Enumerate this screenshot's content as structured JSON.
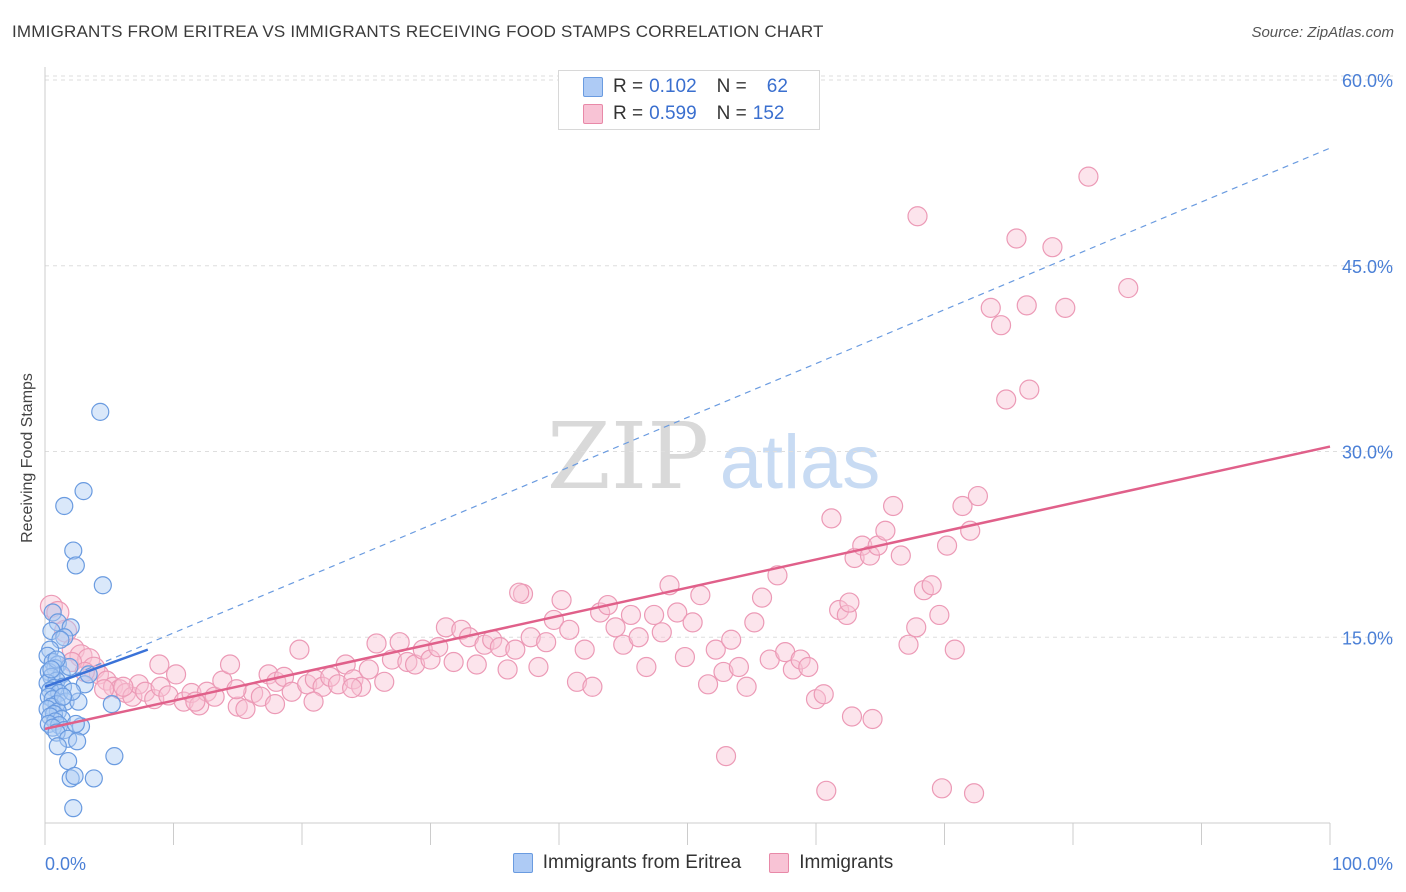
{
  "header": {
    "title": "IMMIGRANTS FROM ERITREA VS IMMIGRANTS RECEIVING FOOD STAMPS CORRELATION CHART",
    "source": "Source: ZipAtlas.com"
  },
  "watermark": {
    "part1": "ZIP",
    "part2": "atlas"
  },
  "legend": {
    "rows": [
      {
        "r_label": "R =",
        "r_value": "0.102",
        "n_label": "N =",
        "n_value": "62",
        "color": "#aecbf5",
        "border": "#6a9be0"
      },
      {
        "r_label": "R =",
        "r_value": "0.599",
        "n_label": "N =",
        "n_value": "152",
        "color": "#f8c3d5",
        "border": "#e889a8"
      }
    ]
  },
  "bottom_legend": {
    "series1": "Immigrants from Eritrea",
    "series2": "Immigrants"
  },
  "chart_data": {
    "type": "scatter",
    "title": "IMMIGRANTS FROM ERITREA VS IMMIGRANTS RECEIVING FOOD STAMPS CORRELATION CHART",
    "xlabel": "",
    "ylabel": "Receiving Food Stamps",
    "xlim": [
      0,
      100
    ],
    "ylim": [
      0,
      60
    ],
    "x_tick_labels": [
      "0.0%",
      "100.0%"
    ],
    "y_ticks": [
      15,
      30,
      45,
      60
    ],
    "y_tick_labels": [
      "15.0%",
      "30.0%",
      "45.0%",
      "60.0%"
    ],
    "grid": true,
    "legend_placement": "top-center",
    "colors": {
      "eritrea": "#6a9be0",
      "immigrants": "#e889a8",
      "eritrea_line": "#3a72d8",
      "immigrants_line": "#e0608a"
    },
    "series": [
      {
        "name": "Immigrants from Eritrea",
        "R": 0.102,
        "N": 62,
        "trend": {
          "x": [
            0,
            8
          ],
          "y": [
            11.0,
            14.0
          ],
          "extended_to": [
            100,
            54.5
          ]
        },
        "points": [
          [
            4.3,
            33.2
          ],
          [
            3.0,
            26.8
          ],
          [
            1.5,
            25.6
          ],
          [
            2.2,
            22.0
          ],
          [
            2.4,
            20.8
          ],
          [
            4.5,
            19.2
          ],
          [
            0.6,
            17.0
          ],
          [
            1.0,
            16.2
          ],
          [
            2.0,
            15.8
          ],
          [
            0.5,
            15.5
          ],
          [
            1.5,
            15.0
          ],
          [
            1.2,
            14.8
          ],
          [
            0.4,
            14.0
          ],
          [
            0.2,
            13.5
          ],
          [
            0.6,
            13.0
          ],
          [
            1.0,
            12.8
          ],
          [
            0.8,
            12.5
          ],
          [
            0.3,
            12.2
          ],
          [
            1.3,
            12.0
          ],
          [
            0.5,
            11.8
          ],
          [
            0.9,
            11.5
          ],
          [
            0.2,
            11.3
          ],
          [
            1.4,
            11.0
          ],
          [
            0.7,
            10.9
          ],
          [
            0.4,
            10.7
          ],
          [
            1.1,
            10.5
          ],
          [
            0.3,
            10.2
          ],
          [
            0.6,
            10.0
          ],
          [
            1.6,
            9.8
          ],
          [
            0.9,
            9.6
          ],
          [
            0.5,
            9.4
          ],
          [
            0.2,
            9.2
          ],
          [
            1.0,
            9.0
          ],
          [
            0.7,
            8.8
          ],
          [
            0.4,
            8.6
          ],
          [
            1.3,
            8.4
          ],
          [
            0.8,
            8.2
          ],
          [
            0.3,
            8.0
          ],
          [
            1.1,
            7.9
          ],
          [
            0.6,
            7.7
          ],
          [
            1.5,
            7.5
          ],
          [
            0.9,
            7.3
          ],
          [
            2.8,
            7.8
          ],
          [
            1.8,
            6.8
          ],
          [
            2.5,
            6.6
          ],
          [
            1.0,
            6.2
          ],
          [
            5.4,
            5.4
          ],
          [
            1.8,
            5.0
          ],
          [
            2.0,
            3.6
          ],
          [
            2.3,
            3.8
          ],
          [
            3.8,
            3.6
          ],
          [
            2.2,
            1.2
          ],
          [
            3.1,
            11.2
          ],
          [
            3.4,
            12.0
          ],
          [
            5.2,
            9.6
          ],
          [
            2.6,
            9.8
          ],
          [
            1.9,
            12.6
          ],
          [
            2.1,
            10.6
          ],
          [
            0.9,
            13.2
          ],
          [
            1.4,
            10.2
          ],
          [
            2.4,
            8.0
          ],
          [
            0.5,
            12.4
          ]
        ]
      },
      {
        "name": "Immigrants",
        "R": 0.599,
        "N": 152,
        "trend": {
          "x": [
            0,
            100
          ],
          "y": [
            7.6,
            30.4
          ]
        },
        "points": [
          [
            0.5,
            17.5
          ],
          [
            1.0,
            17.0
          ],
          [
            1.6,
            15.5
          ],
          [
            2.2,
            14.0
          ],
          [
            2.8,
            13.5
          ],
          [
            3.4,
            13.2
          ],
          [
            3.8,
            12.5
          ],
          [
            4.2,
            12.0
          ],
          [
            4.8,
            11.5
          ],
          [
            5.3,
            11.0
          ],
          [
            5.8,
            10.8
          ],
          [
            6.3,
            10.5
          ],
          [
            6.8,
            10.2
          ],
          [
            7.3,
            11.2
          ],
          [
            7.8,
            10.6
          ],
          [
            8.5,
            10.0
          ],
          [
            9.0,
            11.0
          ],
          [
            9.6,
            10.3
          ],
          [
            10.2,
            12.0
          ],
          [
            10.8,
            9.8
          ],
          [
            11.4,
            10.5
          ],
          [
            12.0,
            9.5
          ],
          [
            12.6,
            10.6
          ],
          [
            13.2,
            10.2
          ],
          [
            13.8,
            11.5
          ],
          [
            14.4,
            12.8
          ],
          [
            15.0,
            9.4
          ],
          [
            15.6,
            9.2
          ],
          [
            16.2,
            10.5
          ],
          [
            16.8,
            10.2
          ],
          [
            17.4,
            12.0
          ],
          [
            18.0,
            11.4
          ],
          [
            18.6,
            11.8
          ],
          [
            19.2,
            10.6
          ],
          [
            19.8,
            14.0
          ],
          [
            20.4,
            11.2
          ],
          [
            21.0,
            11.6
          ],
          [
            21.6,
            11.0
          ],
          [
            22.2,
            11.8
          ],
          [
            22.8,
            11.2
          ],
          [
            23.4,
            12.8
          ],
          [
            24.0,
            11.6
          ],
          [
            24.6,
            11.0
          ],
          [
            25.2,
            12.4
          ],
          [
            25.8,
            14.5
          ],
          [
            26.4,
            11.4
          ],
          [
            27.0,
            13.2
          ],
          [
            27.6,
            14.6
          ],
          [
            28.2,
            13.0
          ],
          [
            28.8,
            12.8
          ],
          [
            29.4,
            14.0
          ],
          [
            30.0,
            13.2
          ],
          [
            30.6,
            14.2
          ],
          [
            31.2,
            15.8
          ],
          [
            31.8,
            13.0
          ],
          [
            32.4,
            15.6
          ],
          [
            33.0,
            15.0
          ],
          [
            33.6,
            12.8
          ],
          [
            34.2,
            14.4
          ],
          [
            34.8,
            14.8
          ],
          [
            35.4,
            14.2
          ],
          [
            36.0,
            12.4
          ],
          [
            36.6,
            14.0
          ],
          [
            37.2,
            18.5
          ],
          [
            37.8,
            15.0
          ],
          [
            38.4,
            12.6
          ],
          [
            39.0,
            14.6
          ],
          [
            39.6,
            16.4
          ],
          [
            40.2,
            18.0
          ],
          [
            40.8,
            15.6
          ],
          [
            41.4,
            11.4
          ],
          [
            42.0,
            14.0
          ],
          [
            42.6,
            11.0
          ],
          [
            43.2,
            17.0
          ],
          [
            43.8,
            17.6
          ],
          [
            44.4,
            15.8
          ],
          [
            45.0,
            14.4
          ],
          [
            45.6,
            16.8
          ],
          [
            46.2,
            15.0
          ],
          [
            46.8,
            12.6
          ],
          [
            47.4,
            16.8
          ],
          [
            48.0,
            15.4
          ],
          [
            48.6,
            19.2
          ],
          [
            49.2,
            17.0
          ],
          [
            49.8,
            13.4
          ],
          [
            50.4,
            16.2
          ],
          [
            51.0,
            18.4
          ],
          [
            51.6,
            11.2
          ],
          [
            52.2,
            14.0
          ],
          [
            52.8,
            12.2
          ],
          [
            53.4,
            14.8
          ],
          [
            54.0,
            12.6
          ],
          [
            54.6,
            11.0
          ],
          [
            55.2,
            16.2
          ],
          [
            55.8,
            18.2
          ],
          [
            56.4,
            13.2
          ],
          [
            57.0,
            20.0
          ],
          [
            57.6,
            13.8
          ],
          [
            58.2,
            12.4
          ],
          [
            58.8,
            13.2
          ],
          [
            59.4,
            12.6
          ],
          [
            60.0,
            10.0
          ],
          [
            60.6,
            10.4
          ],
          [
            61.2,
            24.6
          ],
          [
            61.8,
            17.2
          ],
          [
            62.4,
            16.8
          ],
          [
            63.0,
            21.4
          ],
          [
            63.6,
            22.4
          ],
          [
            64.2,
            21.6
          ],
          [
            64.8,
            22.4
          ],
          [
            65.4,
            23.6
          ],
          [
            66.0,
            25.6
          ],
          [
            66.6,
            21.6
          ],
          [
            67.2,
            14.4
          ],
          [
            67.8,
            15.8
          ],
          [
            68.4,
            18.8
          ],
          [
            69.0,
            19.2
          ],
          [
            69.6,
            16.8
          ],
          [
            70.2,
            22.4
          ],
          [
            70.8,
            14.0
          ],
          [
            71.4,
            25.6
          ],
          [
            72.0,
            23.6
          ],
          [
            72.6,
            26.4
          ],
          [
            36.9,
            18.6
          ],
          [
            62.6,
            17.8
          ],
          [
            53.0,
            5.4
          ],
          [
            60.8,
            2.6
          ],
          [
            62.8,
            8.6
          ],
          [
            69.8,
            2.8
          ],
          [
            72.3,
            2.4
          ],
          [
            64.4,
            8.4
          ],
          [
            67.9,
            49.0
          ],
          [
            75.6,
            47.2
          ],
          [
            78.4,
            46.5
          ],
          [
            81.2,
            52.2
          ],
          [
            76.4,
            41.8
          ],
          [
            79.4,
            41.6
          ],
          [
            84.3,
            43.2
          ],
          [
            74.4,
            40.2
          ],
          [
            74.8,
            34.2
          ],
          [
            76.6,
            35.0
          ],
          [
            73.6,
            41.6
          ],
          [
            2.1,
            13.0
          ],
          [
            3.1,
            12.2
          ],
          [
            4.6,
            10.8
          ],
          [
            6.1,
            11.0
          ],
          [
            8.9,
            12.8
          ],
          [
            11.7,
            9.8
          ],
          [
            14.9,
            10.8
          ],
          [
            17.9,
            9.6
          ],
          [
            20.9,
            9.8
          ],
          [
            23.9,
            10.9
          ]
        ]
      }
    ]
  }
}
